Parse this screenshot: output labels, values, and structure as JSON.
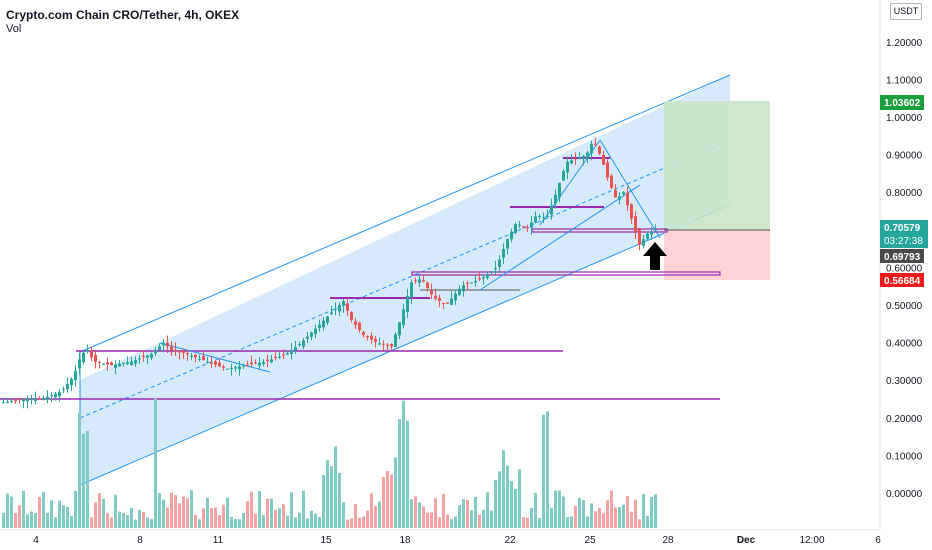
{
  "header": {
    "symbol": "Crypto.com Chain CRO/Tether, 4h, OKEX",
    "volume_label": "Vol",
    "currency": "USDT"
  },
  "colors": {
    "up": "#26a69a",
    "down": "#ef5350",
    "channel_fill": "#cfe6fb",
    "channel_line": "#2196f3",
    "level_line": "#9c27b0",
    "target_zone": "#c8e6c9",
    "stop_zone": "#ffcdd2",
    "arrow": "#000000"
  },
  "chart_data": {
    "type": "candlestick",
    "title": "Crypto.com Chain CRO/Tether, 4h, OKEX",
    "ylim": [
      -0.05,
      1.32
    ],
    "y_ticks": [
      "0.00000",
      "0.10000",
      "0.20000",
      "0.30000",
      "0.40000",
      "0.50000",
      "0.60000",
      "0.70000",
      "0.80000",
      "0.90000",
      "1.00000",
      "1.10000",
      "1.20000"
    ],
    "x_ticks": [
      "4",
      "8",
      "11",
      "15",
      "18",
      "22",
      "25",
      "28",
      "Dec",
      "12:00",
      "6"
    ],
    "price_labels": [
      {
        "value": "1.03602",
        "role": "target",
        "color": "#1b9e3e"
      },
      {
        "value": "0.70579",
        "role": "last",
        "color": "#26a69a"
      },
      {
        "value": "03:27:38",
        "role": "countdown",
        "color": "#26a69a"
      },
      {
        "value": "0.69793",
        "role": "prior",
        "color": "#4a4a4a"
      },
      {
        "value": "0.56684",
        "role": "stop",
        "color": "#ef1c1c"
      }
    ],
    "price_top_partial": "1.30000",
    "price_bottom_partial": "0.60000"
  }
}
